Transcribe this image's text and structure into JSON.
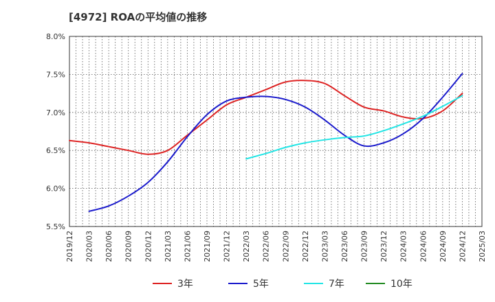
{
  "chart_data": {
    "type": "line",
    "title": "[4972]  ROAの平均値の推移",
    "xlabel": "",
    "ylabel": "",
    "ylim": [
      5.5,
      8.0
    ],
    "yticks": [
      "5.5%",
      "6.0%",
      "6.5%",
      "7.0%",
      "7.5%",
      "8.0%"
    ],
    "xticks": [
      "2019/12",
      "2020/03",
      "2020/06",
      "2020/09",
      "2020/12",
      "2021/03",
      "2021/06",
      "2021/09",
      "2021/12",
      "2022/03",
      "2022/06",
      "2022/09",
      "2022/12",
      "2023/03",
      "2023/06",
      "2023/09",
      "2023/12",
      "2024/03",
      "2024/06",
      "2024/09",
      "2024/12",
      "2025/03"
    ],
    "grid": true,
    "legend_position": "bottom",
    "series": [
      {
        "name": "3年",
        "color": "#dd2222",
        "points": [
          {
            "x": "2019/12",
            "y": 6.63
          },
          {
            "x": "2020/03",
            "y": 6.6
          },
          {
            "x": "2020/06",
            "y": 6.55
          },
          {
            "x": "2020/09",
            "y": 6.5
          },
          {
            "x": "2020/12",
            "y": 6.45
          },
          {
            "x": "2021/03",
            "y": 6.5
          },
          {
            "x": "2021/06",
            "y": 6.7
          },
          {
            "x": "2021/09",
            "y": 6.9
          },
          {
            "x": "2021/12",
            "y": 7.1
          },
          {
            "x": "2022/03",
            "y": 7.2
          },
          {
            "x": "2022/06",
            "y": 7.3
          },
          {
            "x": "2022/09",
            "y": 7.4
          },
          {
            "x": "2022/12",
            "y": 7.42
          },
          {
            "x": "2023/03",
            "y": 7.38
          },
          {
            "x": "2023/06",
            "y": 7.22
          },
          {
            "x": "2023/09",
            "y": 7.07
          },
          {
            "x": "2023/12",
            "y": 7.02
          },
          {
            "x": "2024/03",
            "y": 6.94
          },
          {
            "x": "2024/06",
            "y": 6.92
          },
          {
            "x": "2024/09",
            "y": 7.02
          },
          {
            "x": "2024/12",
            "y": 7.25
          }
        ]
      },
      {
        "name": "5年",
        "color": "#1a1acc",
        "points": [
          {
            "x": "2020/03",
            "y": 5.7
          },
          {
            "x": "2020/06",
            "y": 5.77
          },
          {
            "x": "2020/09",
            "y": 5.9
          },
          {
            "x": "2020/12",
            "y": 6.08
          },
          {
            "x": "2021/03",
            "y": 6.35
          },
          {
            "x": "2021/06",
            "y": 6.68
          },
          {
            "x": "2021/09",
            "y": 6.97
          },
          {
            "x": "2021/12",
            "y": 7.15
          },
          {
            "x": "2022/03",
            "y": 7.2
          },
          {
            "x": "2022/06",
            "y": 7.21
          },
          {
            "x": "2022/09",
            "y": 7.17
          },
          {
            "x": "2022/12",
            "y": 7.07
          },
          {
            "x": "2023/03",
            "y": 6.9
          },
          {
            "x": "2023/06",
            "y": 6.7
          },
          {
            "x": "2023/09",
            "y": 6.56
          },
          {
            "x": "2023/12",
            "y": 6.6
          },
          {
            "x": "2024/03",
            "y": 6.72
          },
          {
            "x": "2024/06",
            "y": 6.92
          },
          {
            "x": "2024/09",
            "y": 7.2
          },
          {
            "x": "2024/12",
            "y": 7.51
          }
        ]
      },
      {
        "name": "7年",
        "color": "#22e5e5",
        "points": [
          {
            "x": "2022/03",
            "y": 6.39
          },
          {
            "x": "2022/06",
            "y": 6.46
          },
          {
            "x": "2022/09",
            "y": 6.54
          },
          {
            "x": "2022/12",
            "y": 6.6
          },
          {
            "x": "2023/03",
            "y": 6.64
          },
          {
            "x": "2023/06",
            "y": 6.67
          },
          {
            "x": "2023/09",
            "y": 6.69
          },
          {
            "x": "2023/12",
            "y": 6.76
          },
          {
            "x": "2024/03",
            "y": 6.85
          },
          {
            "x": "2024/06",
            "y": 6.95
          },
          {
            "x": "2024/09",
            "y": 7.08
          },
          {
            "x": "2024/12",
            "y": 7.22
          }
        ]
      },
      {
        "name": "10年",
        "color": "#228b22",
        "points": []
      }
    ]
  }
}
